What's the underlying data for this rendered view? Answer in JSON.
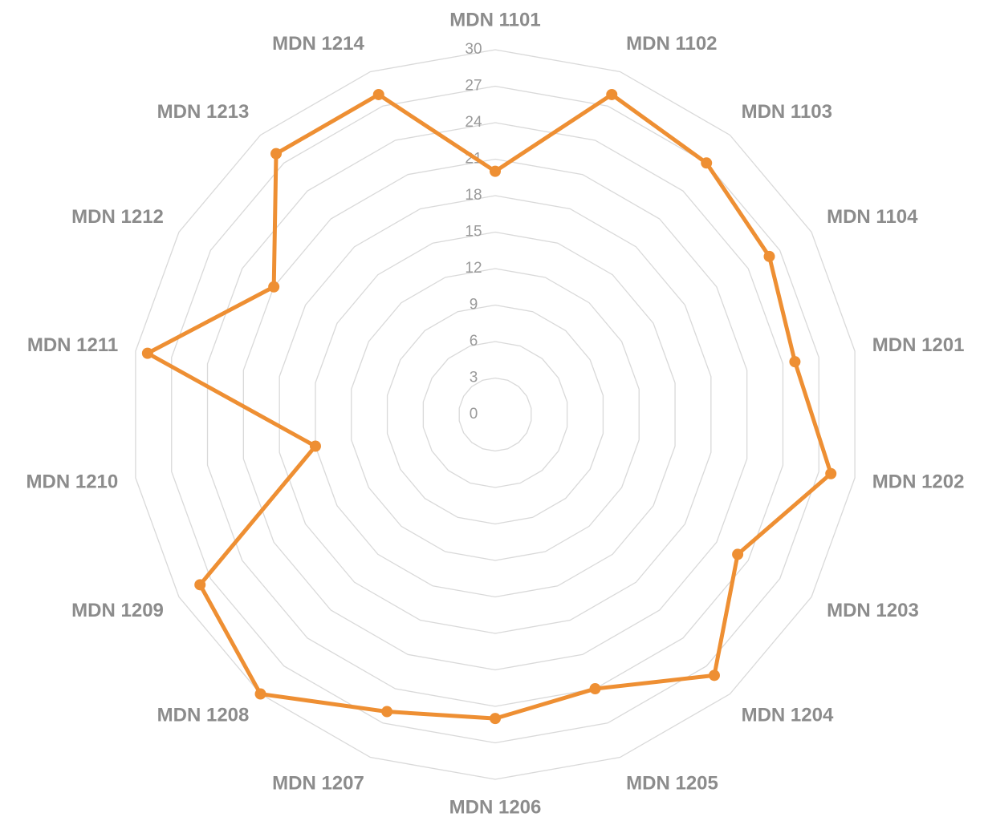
{
  "chart_data": {
    "type": "radar",
    "categories": [
      "MDN 1101",
      "MDN 1102",
      "MDN 1103",
      "MDN 1104",
      "MDN 1201",
      "MDN 1202",
      "MDN 1203",
      "MDN 1204",
      "MDN 1205",
      "MDN 1206",
      "MDN 1207",
      "MDN 1208",
      "MDN 1209",
      "MDN 1210",
      "MDN 1211",
      "MDN 1212",
      "MDN 1213",
      "MDN 1214"
    ],
    "values": [
      20,
      28,
      27,
      26,
      25,
      28,
      23,
      28,
      24,
      25,
      26,
      30,
      28,
      15,
      29,
      21,
      28,
      28
    ],
    "color": "#ee8f33",
    "ylim": [
      0,
      30
    ],
    "yticks": [
      0,
      3,
      6,
      9,
      12,
      15,
      18,
      21,
      24,
      27,
      30
    ],
    "grid": true
  }
}
